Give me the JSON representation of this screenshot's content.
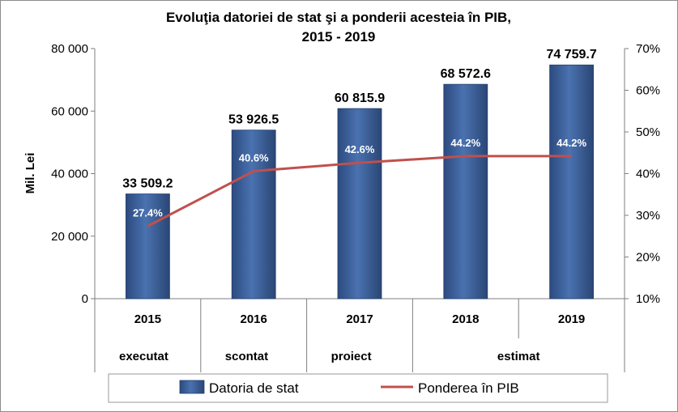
{
  "chart_data": {
    "type": "bar",
    "title_line1": "Evoluţia datoriei de stat  şi a ponderii acesteia în PIB,",
    "title_line2": "2015 - 2019",
    "ylabel": "Mil. Lei",
    "ylim": [
      0,
      80000
    ],
    "y2lim": [
      0.1,
      0.7
    ],
    "yticks": [
      "0",
      "20 000",
      "40 000",
      "60 000",
      "80 000"
    ],
    "y2ticks": [
      "10%",
      "20%",
      "30%",
      "40%",
      "50%",
      "60%",
      "70%"
    ],
    "categories": [
      "2015",
      "2016",
      "2017",
      "2018",
      "2019"
    ],
    "category_groups": [
      {
        "label": "executat",
        "span": [
          0,
          0
        ]
      },
      {
        "label": "scontat",
        "span": [
          1,
          1
        ]
      },
      {
        "label": "proiect",
        "span": [
          2,
          2
        ]
      },
      {
        "label": "estimat",
        "span": [
          3,
          4
        ]
      }
    ],
    "series": [
      {
        "name": "Datoria de stat",
        "kind": "bar",
        "values": [
          33509.2,
          53926.5,
          60815.9,
          68572.6,
          74759.7
        ],
        "labels": [
          "33 509.2",
          "53 926.5",
          "60 815.9",
          "68 572.6",
          "74 759.7"
        ],
        "color": "#3c63a0"
      },
      {
        "name": "Ponderea în PIB",
        "kind": "line",
        "axis": "secondary",
        "values": [
          0.274,
          0.406,
          0.426,
          0.442,
          0.442
        ],
        "labels": [
          "27.4%",
          "40.6%",
          "42.6%",
          "44.2%",
          "44.2%"
        ],
        "color": "#c0504d"
      }
    ],
    "grid": false,
    "legend_position": "bottom"
  }
}
